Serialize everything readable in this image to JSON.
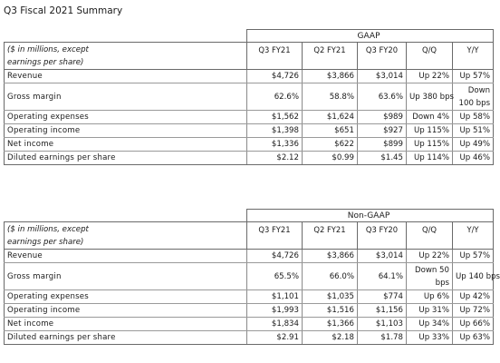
{
  "page_title": "Q3 Fiscal 2021 Summary",
  "gaap": {
    "section_title": "GAAP",
    "label_line1": "($ in millions, except",
    "label_line2": "earnings per share)",
    "headers": [
      "Q3 FY21",
      "Q2 FY21",
      "Q3 FY20",
      "Q/Q",
      "Y/Y"
    ],
    "rows": [
      {
        "label": "Revenue",
        "cells": [
          "$4,726",
          "$3,866",
          "$3,014",
          "Up 22%",
          "Up 57%"
        ]
      },
      {
        "label": "Gross margin",
        "cells": [
          "62.6%",
          "58.8%",
          "63.6%",
          "Up 380 bps",
          "Down 100 bps"
        ]
      },
      {
        "label": "Operating expenses",
        "cells": [
          "$1,562",
          "$1,624",
          "$989",
          "Down 4%",
          "Up 58%"
        ]
      },
      {
        "label": "Operating income",
        "cells": [
          "$1,398",
          "$651",
          "$927",
          "Up 115%",
          "Up 51%"
        ]
      },
      {
        "label": "Net income",
        "cells": [
          "$1,336",
          "$622",
          "$899",
          "Up 115%",
          "Up 49%"
        ]
      },
      {
        "label": "Diluted earnings per share",
        "cells": [
          "$2.12",
          "$0.99",
          "$1.45",
          "Up 114%",
          "Up 46%"
        ]
      }
    ]
  },
  "nongaap": {
    "section_title": "Non-GAAP",
    "label_line1": "($ in millions, except",
    "label_line2": "earnings per share)",
    "headers": [
      "Q3 FY21",
      "Q2 FY21",
      "Q3 FY20",
      "Q/Q",
      "Y/Y"
    ],
    "rows": [
      {
        "label": "Revenue",
        "cells": [
          "$4,726",
          "$3,866",
          "$3,014",
          "Up 22%",
          "Up 57%"
        ]
      },
      {
        "label": "Gross margin",
        "cells": [
          "65.5%",
          "66.0%",
          "64.1%",
          "Down 50 bps",
          "Up 140 bps"
        ]
      },
      {
        "label": "Operating expenses",
        "cells": [
          "$1,101",
          "$1,035",
          "$774",
          "Up 6%",
          "Up 42%"
        ]
      },
      {
        "label": "Operating income",
        "cells": [
          "$1,993",
          "$1,516",
          "$1,156",
          "Up 31%",
          "Up 72%"
        ]
      },
      {
        "label": "Net income",
        "cells": [
          "$1,834",
          "$1,366",
          "$1,103",
          "Up 34%",
          "Up 66%"
        ]
      },
      {
        "label": "Diluted earnings per share",
        "cells": [
          "$2.91",
          "$2.18",
          "$1.78",
          "Up 33%",
          "Up 63%"
        ]
      }
    ]
  }
}
